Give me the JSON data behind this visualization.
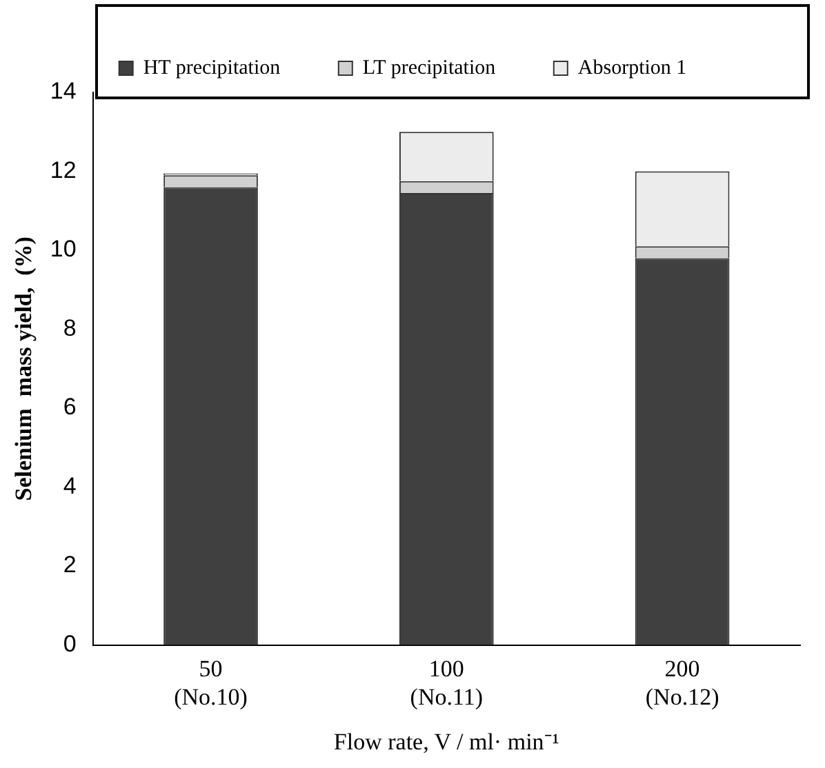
{
  "chart_data": {
    "type": "bar",
    "stacked": true,
    "categories": [
      "50\n(No.10)",
      "100\n(No.11)",
      "200\n(No.12)"
    ],
    "series": [
      {
        "name": "HT precipitation",
        "color": "#404040",
        "values": [
          11.6,
          11.45,
          9.8
        ]
      },
      {
        "name": "LT precipitation",
        "color": "#d0d0d0",
        "values": [
          0.3,
          0.3,
          0.3
        ]
      },
      {
        "name": "Absorption 1",
        "color": "#ececec",
        "values": [
          0.05,
          1.25,
          1.9
        ]
      }
    ],
    "ylim": [
      0,
      14
    ],
    "yticks": [
      0,
      2,
      4,
      6,
      8,
      10,
      12,
      14
    ],
    "ylabel": "Selenium  mass yield,  (%)",
    "xlabel": "Flow rate, V / ml· min⁻¹",
    "grid": false,
    "legend": "top"
  }
}
